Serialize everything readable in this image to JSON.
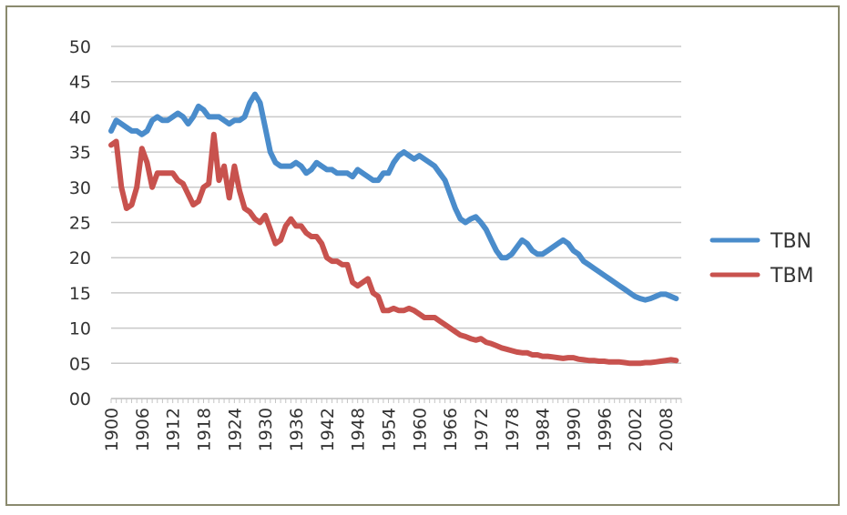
{
  "chart_data": {
    "type": "line",
    "xlabel": "",
    "ylabel": "",
    "xlim": [
      1900,
      2011
    ],
    "ylim": [
      0,
      50
    ],
    "grid": true,
    "legend_position": "right",
    "y_tick_labels": [
      "00",
      "05",
      "10",
      "15",
      "20",
      "25",
      "30",
      "35",
      "40",
      "45",
      "50"
    ],
    "x_tick_labels": [
      "1900",
      "1906",
      "1912",
      "1918",
      "1924",
      "1930",
      "1936",
      "1942",
      "1948",
      "1954",
      "1960",
      "1966",
      "1972",
      "1978",
      "1984",
      "1990",
      "1996",
      "2002",
      "2008"
    ],
    "series": [
      {
        "name": "TBN",
        "color": "#4a8ccb",
        "points": [
          [
            1900,
            38.0
          ],
          [
            1901,
            39.5
          ],
          [
            1902,
            39.0
          ],
          [
            1903,
            38.5
          ],
          [
            1904,
            38.0
          ],
          [
            1905,
            38.0
          ],
          [
            1906,
            37.5
          ],
          [
            1907,
            38.0
          ],
          [
            1908,
            39.5
          ],
          [
            1909,
            40.0
          ],
          [
            1910,
            39.5
          ],
          [
            1911,
            39.5
          ],
          [
            1912,
            40.0
          ],
          [
            1913,
            40.5
          ],
          [
            1914,
            40.0
          ],
          [
            1915,
            39.0
          ],
          [
            1916,
            40.0
          ],
          [
            1917,
            41.5
          ],
          [
            1918,
            41.0
          ],
          [
            1919,
            40.0
          ],
          [
            1920,
            40.0
          ],
          [
            1921,
            40.0
          ],
          [
            1922,
            39.5
          ],
          [
            1923,
            39.0
          ],
          [
            1924,
            39.5
          ],
          [
            1925,
            39.5
          ],
          [
            1926,
            40.0
          ],
          [
            1927,
            42.0
          ],
          [
            1928,
            43.2
          ],
          [
            1929,
            42.0
          ],
          [
            1930,
            38.5
          ],
          [
            1931,
            35.0
          ],
          [
            1932,
            33.5
          ],
          [
            1933,
            33.0
          ],
          [
            1934,
            33.0
          ],
          [
            1935,
            33.0
          ],
          [
            1936,
            33.5
          ],
          [
            1937,
            33.0
          ],
          [
            1938,
            32.0
          ],
          [
            1939,
            32.5
          ],
          [
            1940,
            33.5
          ],
          [
            1941,
            33.0
          ],
          [
            1942,
            32.5
          ],
          [
            1943,
            32.5
          ],
          [
            1944,
            32.0
          ],
          [
            1945,
            32.0
          ],
          [
            1946,
            32.0
          ],
          [
            1947,
            31.5
          ],
          [
            1948,
            32.5
          ],
          [
            1949,
            32.0
          ],
          [
            1950,
            31.5
          ],
          [
            1951,
            31.0
          ],
          [
            1952,
            31.0
          ],
          [
            1953,
            32.0
          ],
          [
            1954,
            32.0
          ],
          [
            1955,
            33.5
          ],
          [
            1956,
            34.5
          ],
          [
            1957,
            35.0
          ],
          [
            1958,
            34.5
          ],
          [
            1959,
            34.0
          ],
          [
            1960,
            34.5
          ],
          [
            1961,
            34.0
          ],
          [
            1962,
            33.5
          ],
          [
            1963,
            33.0
          ],
          [
            1964,
            32.0
          ],
          [
            1965,
            31.0
          ],
          [
            1966,
            29.0
          ],
          [
            1967,
            27.0
          ],
          [
            1968,
            25.5
          ],
          [
            1969,
            25.0
          ],
          [
            1970,
            25.5
          ],
          [
            1971,
            25.8
          ],
          [
            1972,
            25.0
          ],
          [
            1973,
            24.0
          ],
          [
            1974,
            22.5
          ],
          [
            1975,
            21.0
          ],
          [
            1976,
            20.0
          ],
          [
            1977,
            20.0
          ],
          [
            1978,
            20.5
          ],
          [
            1979,
            21.5
          ],
          [
            1980,
            22.5
          ],
          [
            1981,
            22.0
          ],
          [
            1982,
            21.0
          ],
          [
            1983,
            20.5
          ],
          [
            1984,
            20.5
          ],
          [
            1985,
            21.0
          ],
          [
            1986,
            21.5
          ],
          [
            1987,
            22.0
          ],
          [
            1988,
            22.5
          ],
          [
            1989,
            22.0
          ],
          [
            1990,
            21.0
          ],
          [
            1991,
            20.5
          ],
          [
            1992,
            19.5
          ],
          [
            1993,
            19.0
          ],
          [
            1994,
            18.5
          ],
          [
            1995,
            18.0
          ],
          [
            1996,
            17.5
          ],
          [
            1997,
            17.0
          ],
          [
            1998,
            16.5
          ],
          [
            1999,
            16.0
          ],
          [
            2000,
            15.5
          ],
          [
            2001,
            15.0
          ],
          [
            2002,
            14.5
          ],
          [
            2003,
            14.2
          ],
          [
            2004,
            14.0
          ],
          [
            2005,
            14.2
          ],
          [
            2006,
            14.5
          ],
          [
            2007,
            14.8
          ],
          [
            2008,
            14.8
          ],
          [
            2009,
            14.5
          ],
          [
            2010,
            14.2
          ]
        ]
      },
      {
        "name": "TBM",
        "color": "#c8524e",
        "points": [
          [
            1900,
            36.0
          ],
          [
            1901,
            36.5
          ],
          [
            1902,
            30.0
          ],
          [
            1903,
            27.0
          ],
          [
            1904,
            27.5
          ],
          [
            1905,
            30.0
          ],
          [
            1906,
            35.5
          ],
          [
            1907,
            33.5
          ],
          [
            1908,
            30.0
          ],
          [
            1909,
            32.0
          ],
          [
            1910,
            32.0
          ],
          [
            1911,
            32.0
          ],
          [
            1912,
            32.0
          ],
          [
            1913,
            31.0
          ],
          [
            1914,
            30.5
          ],
          [
            1915,
            29.0
          ],
          [
            1916,
            27.5
          ],
          [
            1917,
            28.0
          ],
          [
            1918,
            30.0
          ],
          [
            1919,
            30.5
          ],
          [
            1920,
            37.5
          ],
          [
            1921,
            31.0
          ],
          [
            1922,
            33.0
          ],
          [
            1923,
            28.5
          ],
          [
            1924,
            33.0
          ],
          [
            1925,
            29.5
          ],
          [
            1926,
            27.0
          ],
          [
            1927,
            26.5
          ],
          [
            1928,
            25.5
          ],
          [
            1929,
            25.0
          ],
          [
            1930,
            26.0
          ],
          [
            1931,
            24.0
          ],
          [
            1932,
            22.0
          ],
          [
            1933,
            22.5
          ],
          [
            1934,
            24.5
          ],
          [
            1935,
            25.5
          ],
          [
            1936,
            24.5
          ],
          [
            1937,
            24.5
          ],
          [
            1938,
            23.5
          ],
          [
            1939,
            23.0
          ],
          [
            1940,
            23.0
          ],
          [
            1941,
            22.0
          ],
          [
            1942,
            20.0
          ],
          [
            1943,
            19.5
          ],
          [
            1944,
            19.5
          ],
          [
            1945,
            19.0
          ],
          [
            1946,
            19.0
          ],
          [
            1947,
            16.5
          ],
          [
            1948,
            16.0
          ],
          [
            1949,
            16.5
          ],
          [
            1950,
            17.0
          ],
          [
            1951,
            15.0
          ],
          [
            1952,
            14.5
          ],
          [
            1953,
            12.5
          ],
          [
            1954,
            12.5
          ],
          [
            1955,
            12.8
          ],
          [
            1956,
            12.5
          ],
          [
            1957,
            12.5
          ],
          [
            1958,
            12.8
          ],
          [
            1959,
            12.5
          ],
          [
            1960,
            12.0
          ],
          [
            1961,
            11.5
          ],
          [
            1962,
            11.5
          ],
          [
            1963,
            11.5
          ],
          [
            1964,
            11.0
          ],
          [
            1965,
            10.5
          ],
          [
            1966,
            10.0
          ],
          [
            1967,
            9.5
          ],
          [
            1968,
            9.0
          ],
          [
            1969,
            8.8
          ],
          [
            1970,
            8.5
          ],
          [
            1971,
            8.3
          ],
          [
            1972,
            8.5
          ],
          [
            1973,
            8.0
          ],
          [
            1974,
            7.8
          ],
          [
            1975,
            7.5
          ],
          [
            1976,
            7.2
          ],
          [
            1977,
            7.0
          ],
          [
            1978,
            6.8
          ],
          [
            1979,
            6.6
          ],
          [
            1980,
            6.5
          ],
          [
            1981,
            6.5
          ],
          [
            1982,
            6.2
          ],
          [
            1983,
            6.2
          ],
          [
            1984,
            6.0
          ],
          [
            1985,
            6.0
          ],
          [
            1986,
            5.9
          ],
          [
            1987,
            5.8
          ],
          [
            1988,
            5.7
          ],
          [
            1989,
            5.8
          ],
          [
            1990,
            5.8
          ],
          [
            1991,
            5.6
          ],
          [
            1992,
            5.5
          ],
          [
            1993,
            5.4
          ],
          [
            1994,
            5.4
          ],
          [
            1995,
            5.3
          ],
          [
            1996,
            5.3
          ],
          [
            1997,
            5.2
          ],
          [
            1998,
            5.2
          ],
          [
            1999,
            5.2
          ],
          [
            2000,
            5.1
          ],
          [
            2001,
            5.0
          ],
          [
            2002,
            5.0
          ],
          [
            2003,
            5.0
          ],
          [
            2004,
            5.1
          ],
          [
            2005,
            5.1
          ],
          [
            2006,
            5.2
          ],
          [
            2007,
            5.3
          ],
          [
            2008,
            5.4
          ],
          [
            2009,
            5.5
          ],
          [
            2010,
            5.4
          ]
        ]
      }
    ]
  }
}
